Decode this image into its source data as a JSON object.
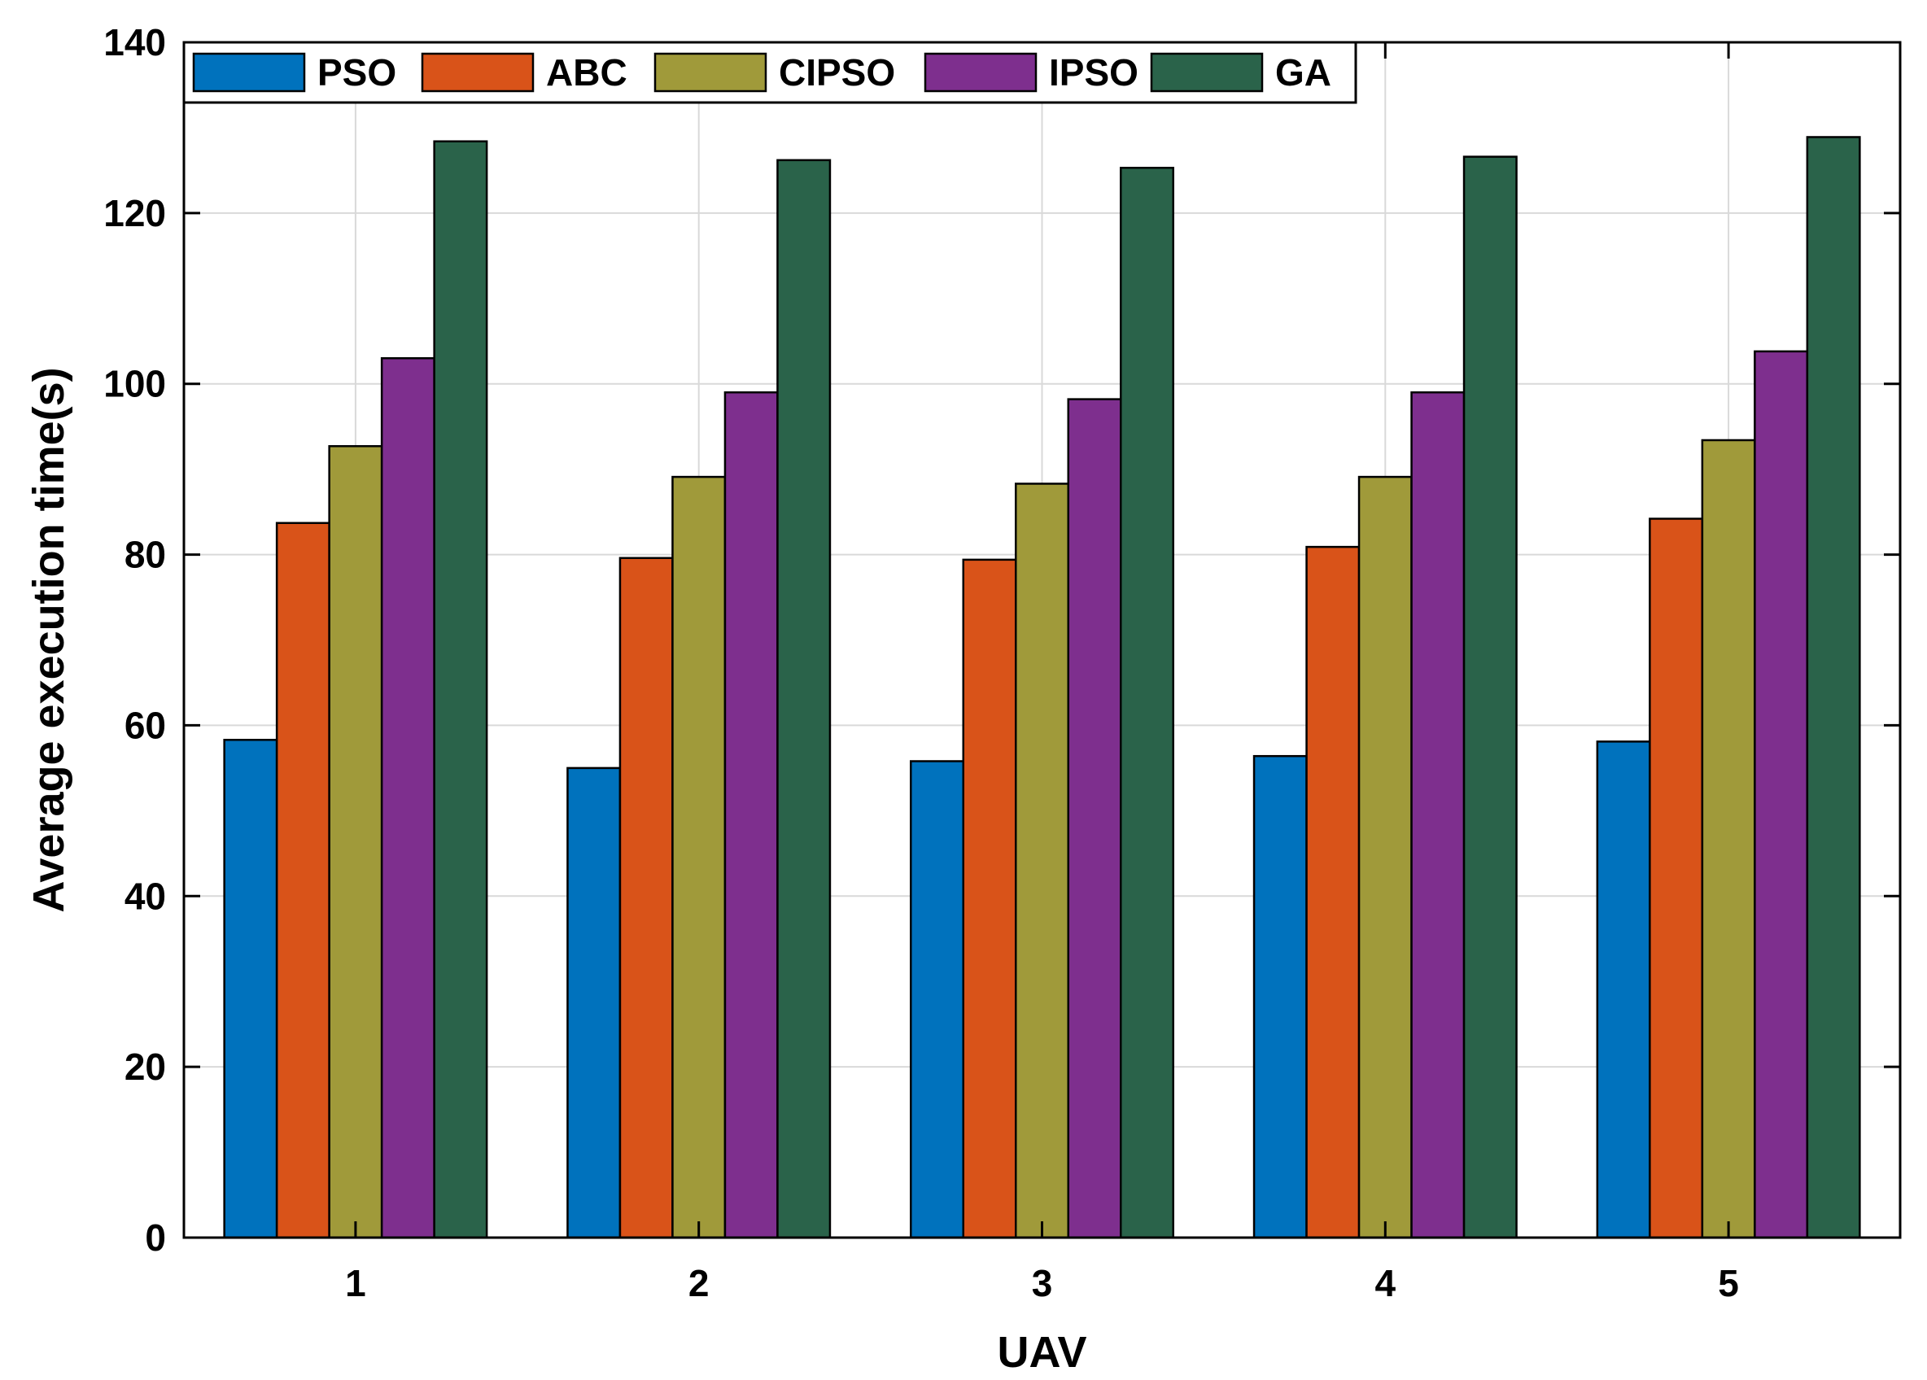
{
  "chart_data": {
    "type": "bar",
    "title": "",
    "xlabel": "UAV",
    "ylabel": "Average execution time(s)",
    "categories": [
      "1",
      "2",
      "3",
      "4",
      "5"
    ],
    "ylim": [
      0,
      140
    ],
    "yticks": [
      "0",
      "20",
      "40",
      "60",
      "80",
      "100",
      "120",
      "140"
    ],
    "grid": true,
    "legend_position": "top-left",
    "series": [
      {
        "name": "PSO",
        "color": "#0072BD",
        "values": [
          58.3,
          55.0,
          55.8,
          56.4,
          58.1
        ]
      },
      {
        "name": "ABC",
        "color": "#D95319",
        "values": [
          83.7,
          79.6,
          79.4,
          80.9,
          84.2
        ]
      },
      {
        "name": "CIPSO",
        "color": "#A09A3A",
        "values": [
          92.7,
          89.1,
          88.3,
          89.1,
          93.4
        ]
      },
      {
        "name": "IPSO",
        "color": "#7E2F8E",
        "values": [
          103.0,
          99.0,
          98.2,
          99.0,
          103.8
        ]
      },
      {
        "name": "GA",
        "color": "#2A634A",
        "values": [
          128.4,
          126.2,
          125.3,
          126.6,
          128.9
        ]
      }
    ]
  }
}
